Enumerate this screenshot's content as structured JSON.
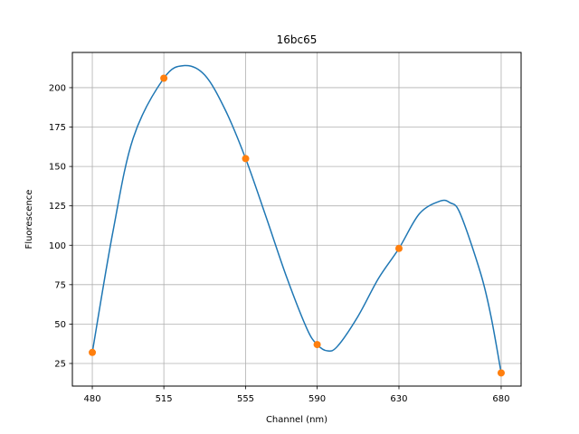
{
  "chart_data": {
    "type": "line",
    "title": "16bc65",
    "xlabel": "Channel (nm)",
    "ylabel": "Fluorescence",
    "x_ticks": [
      480,
      515,
      555,
      590,
      630,
      680
    ],
    "y_ticks": [
      25,
      50,
      75,
      100,
      125,
      150,
      175,
      200
    ],
    "xlim": [
      470.25,
      689.75
    ],
    "ylim": [
      10.65,
      222.35
    ],
    "grid": true,
    "series": [
      {
        "kind": "points",
        "color": "#ff7f0e",
        "x": [
          480,
          515,
          555,
          590,
          630,
          680
        ],
        "y": [
          32,
          206,
          155,
          37,
          98,
          19
        ]
      },
      {
        "kind": "smooth-curve",
        "color": "#1f77b4",
        "x": [
          480,
          490,
          500,
          515,
          525,
          535,
          545,
          555,
          565,
          575,
          585,
          590,
          595,
          600,
          610,
          620,
          630,
          640,
          650,
          655,
          660,
          670,
          675,
          680
        ],
        "y": [
          32,
          108,
          168,
          206,
          214,
          208,
          186,
          155,
          118,
          80,
          47,
          37,
          33,
          36,
          55,
          79,
          98,
          120,
          128,
          127,
          120,
          82,
          55,
          19
        ]
      }
    ]
  }
}
